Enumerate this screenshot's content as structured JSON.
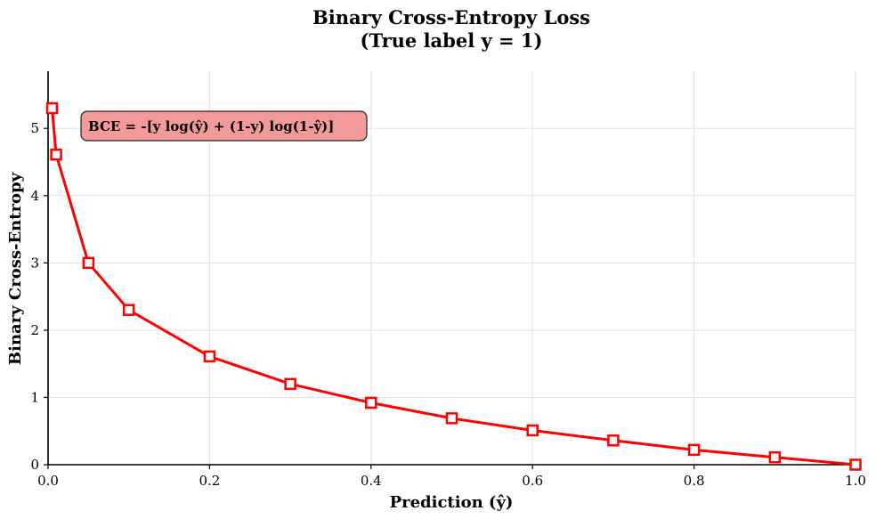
{
  "chart_data": {
    "type": "line",
    "title": "Binary Cross-Entropy Loss",
    "subtitle": "(True label y = 1)",
    "xlabel": "Prediction (ŷ)",
    "ylabel": "Binary Cross-Entropy",
    "xlim": [
      0.0,
      1.0
    ],
    "ylim": [
      0,
      5.85
    ],
    "xticks": [
      0.0,
      0.2,
      0.4,
      0.6,
      0.8,
      1.0
    ],
    "xtick_labels": [
      "0.0",
      "0.2",
      "0.4",
      "0.6",
      "0.8",
      "1.0"
    ],
    "yticks": [
      0,
      1,
      2,
      3,
      4,
      5
    ],
    "ytick_labels": [
      "0",
      "1",
      "2",
      "3",
      "4",
      "5"
    ],
    "grid": true,
    "annotation": "BCE = -[y log(ŷ) + (1-y) log(1-ŷ)]",
    "series": [
      {
        "color": "#ff0000",
        "marker": "square",
        "x": [
          0.005,
          0.01,
          0.05,
          0.1,
          0.2,
          0.3,
          0.4,
          0.5,
          0.6,
          0.7,
          0.8,
          0.9,
          1.0
        ],
        "y": [
          5.3,
          4.61,
          3.0,
          2.3,
          1.61,
          1.2,
          0.92,
          0.69,
          0.51,
          0.36,
          0.22,
          0.11,
          0.0
        ]
      }
    ]
  }
}
